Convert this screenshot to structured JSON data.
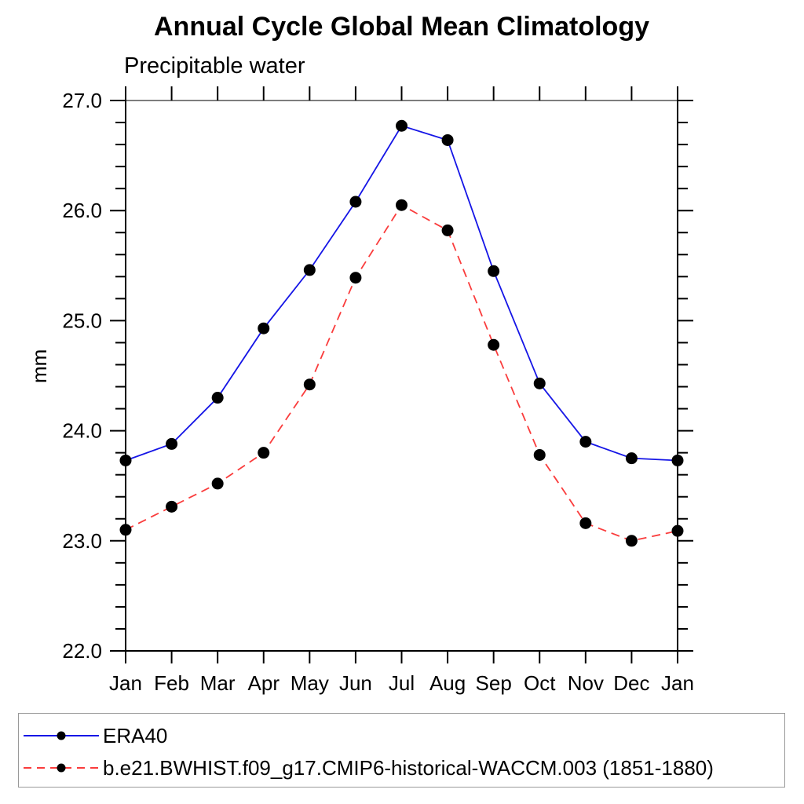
{
  "chart_data": {
    "type": "line",
    "title": "Annual Cycle Global Mean Climatology",
    "subtitle": "Precipitable water",
    "ylabel": "mm",
    "xlabel": "",
    "categories": [
      "Jan",
      "Feb",
      "Mar",
      "Apr",
      "May",
      "Jun",
      "Jul",
      "Aug",
      "Sep",
      "Oct",
      "Nov",
      "Dec",
      "Jan"
    ],
    "ylim": [
      22.0,
      27.0
    ],
    "ytick_major_step": 1.0,
    "ytick_minor_step": 0.2,
    "ytick_labels": [
      "22.0",
      "23.0",
      "24.0",
      "25.0",
      "26.0",
      "27.0"
    ],
    "grid": false,
    "legend_position": "bottom",
    "marker": "filled-circle",
    "marker_color": "#000000",
    "series": [
      {
        "name": "ERA40",
        "color": "#1515e6",
        "style": "solid",
        "values": [
          23.73,
          23.88,
          24.3,
          24.93,
          25.46,
          26.08,
          26.77,
          26.64,
          25.45,
          24.43,
          23.9,
          23.75,
          23.73
        ]
      },
      {
        "name": "b.e21.BWHIST.f09_g17.CMIP6-historical-WACCM.003 (1851-1880)",
        "color": "#fa3c3c",
        "style": "dashed",
        "values": [
          23.1,
          23.31,
          23.52,
          23.8,
          24.42,
          25.39,
          26.05,
          25.82,
          24.78,
          23.78,
          23.16,
          23.0,
          23.09
        ]
      }
    ]
  }
}
